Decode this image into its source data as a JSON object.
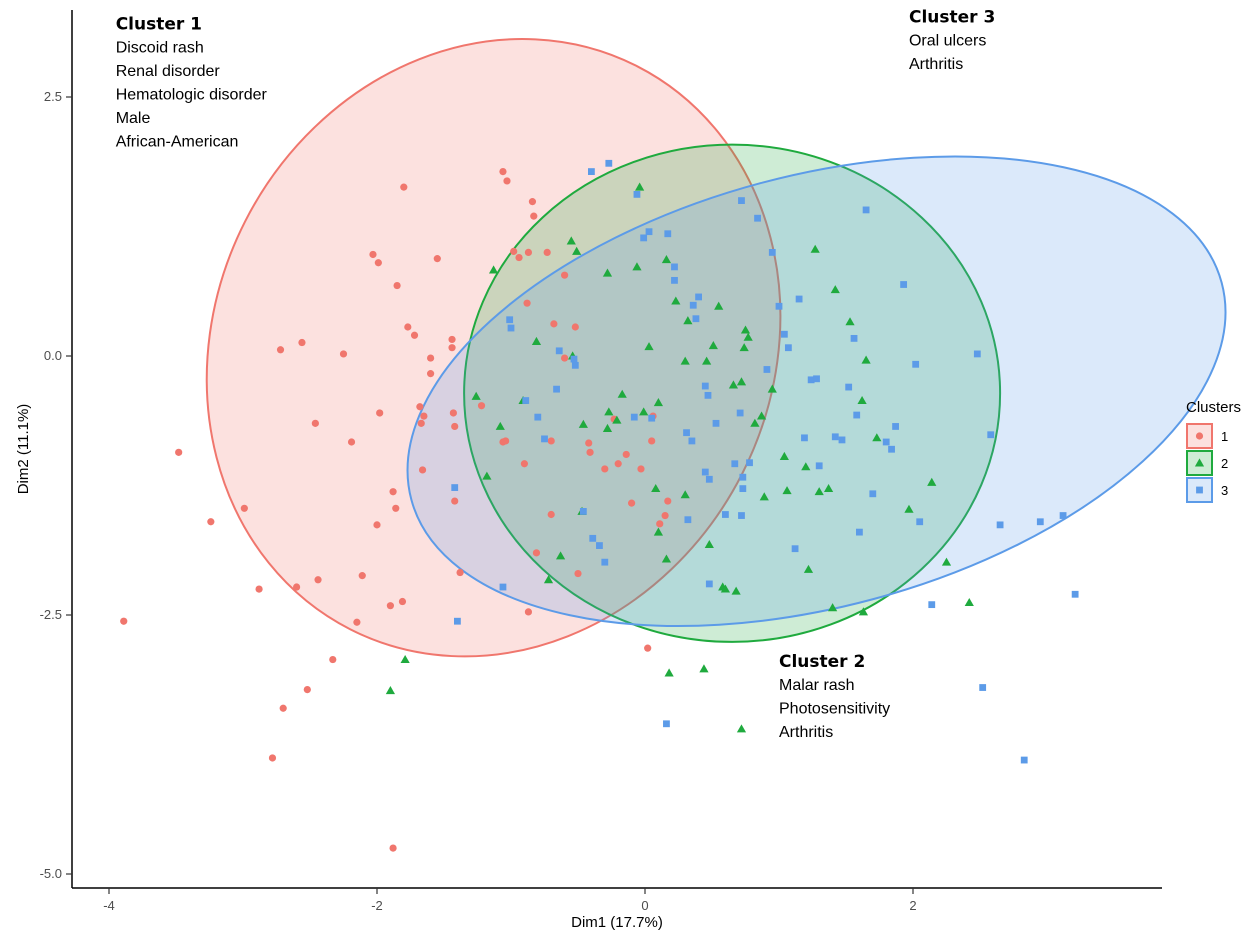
{
  "chart_data": {
    "type": "scatter",
    "xlabel": "Dim1 (17.7%)",
    "ylabel": "Dim2 (11.1%)",
    "xlim": [
      -4.3,
      4.8
    ],
    "ylim": [
      -5.1,
      3.3
    ],
    "x_ticks": [
      -4,
      -2,
      0,
      2
    ],
    "x_tick_labels": [
      "-4",
      "-2",
      "0",
      "2"
    ],
    "y_ticks": [
      2.5,
      0,
      -2.5,
      -5
    ],
    "y_tick_labels": [
      "2.5",
      "0.0",
      "-2.5",
      "-5.0"
    ],
    "grid": false,
    "legend": {
      "title": "Clusters",
      "position": "right",
      "entries": [
        {
          "label": "1",
          "color": "#F0766D",
          "shape": "circle"
        },
        {
          "label": "2",
          "color": "#1FAA3E",
          "shape": "triangle"
        },
        {
          "label": "3",
          "color": "#5C9BE8",
          "shape": "square"
        }
      ]
    },
    "ellipses": [
      {
        "cluster": "1",
        "center": [
          -1.13,
          0.08
        ],
        "semi_axes": [
          2.08,
          3.05
        ],
        "rotation_deg": 27,
        "color": "#F0766D",
        "fill": "rgba(240,118,109,0.22)"
      },
      {
        "cluster": "2",
        "center": [
          0.65,
          -0.36
        ],
        "semi_axes": [
          2.0,
          2.4
        ],
        "rotation_deg": 0,
        "color": "#1FAA3E",
        "fill": "rgba(31,170,62,0.22)"
      },
      {
        "cluster": "3",
        "center": [
          1.28,
          -0.34
        ],
        "semi_axes": [
          3.13,
          2.08
        ],
        "rotation_deg": -15,
        "color": "#5C9BE8",
        "fill": "rgba(92,155,232,0.22)"
      }
    ],
    "annotations": [
      {
        "title": "Cluster 1",
        "lines": [
          "Discoid rash",
          "Renal disorder",
          "Hematologic disorder",
          "Male",
          "African-American"
        ],
        "x": -3.95,
        "y": 3.15
      },
      {
        "title": "Cluster 3",
        "lines": [
          "Oral ulcers",
          "Arthritis"
        ],
        "x": 1.97,
        "y": 3.22
      },
      {
        "title": "Cluster 2",
        "lines": [
          "Malar rash",
          "Photosensitivity",
          "Arthritis"
        ],
        "x": 1.0,
        "y": -3.0
      }
    ],
    "series": [
      {
        "name": "1",
        "color": "#F0766D",
        "shape": "circle",
        "points": [
          [
            -3.89,
            -2.56
          ],
          [
            -3.48,
            -0.93
          ],
          [
            -3.24,
            -1.6
          ],
          [
            -2.99,
            -1.47
          ],
          [
            -2.88,
            -2.25
          ],
          [
            -2.78,
            -3.88
          ],
          [
            -2.7,
            -3.4
          ],
          [
            -2.72,
            0.06
          ],
          [
            -2.6,
            -2.23
          ],
          [
            -2.56,
            0.13
          ],
          [
            -2.52,
            -3.22
          ],
          [
            -2.46,
            -0.65
          ],
          [
            -2.44,
            -2.16
          ],
          [
            -2.33,
            -2.93
          ],
          [
            -2.25,
            0.02
          ],
          [
            -2.19,
            -0.83
          ],
          [
            -2.15,
            -2.57
          ],
          [
            -2.11,
            -2.12
          ],
          [
            -2.03,
            0.98
          ],
          [
            -1.99,
            0.9
          ],
          [
            -2.0,
            -1.63
          ],
          [
            -1.98,
            -0.55
          ],
          [
            -1.9,
            -2.41
          ],
          [
            -1.88,
            -1.31
          ],
          [
            -1.86,
            -1.47
          ],
          [
            -1.85,
            0.68
          ],
          [
            -1.8,
            1.63
          ],
          [
            -1.81,
            -2.37
          ],
          [
            -1.77,
            0.28
          ],
          [
            -1.72,
            0.2
          ],
          [
            -1.68,
            -0.49
          ],
          [
            -1.67,
            -0.65
          ],
          [
            -1.66,
            -1.1
          ],
          [
            -1.65,
            -0.58
          ],
          [
            -1.6,
            -0.02
          ],
          [
            -1.6,
            -0.17
          ],
          [
            -1.55,
            0.94
          ],
          [
            -1.44,
            0.16
          ],
          [
            -1.44,
            0.08
          ],
          [
            -1.43,
            -0.55
          ],
          [
            -1.42,
            -0.68
          ],
          [
            -1.42,
            -1.4
          ],
          [
            -1.38,
            -2.09
          ],
          [
            -1.22,
            -0.48
          ],
          [
            -1.06,
            -0.83
          ],
          [
            -1.04,
            -0.82
          ],
          [
            -1.06,
            1.78
          ],
          [
            -1.03,
            1.69
          ],
          [
            -0.98,
            1.01
          ],
          [
            -0.94,
            0.95
          ],
          [
            -0.87,
            1.0
          ],
          [
            -0.84,
            1.49
          ],
          [
            -0.83,
            1.35
          ],
          [
            -0.88,
            0.51
          ],
          [
            -0.9,
            -1.04
          ],
          [
            -0.87,
            -2.47
          ],
          [
            -0.73,
            1.0
          ],
          [
            -0.7,
            -0.82
          ],
          [
            -0.7,
            -1.53
          ],
          [
            -0.68,
            0.31
          ],
          [
            -0.6,
            -0.02
          ],
          [
            -0.6,
            0.78
          ],
          [
            -0.52,
            0.28
          ],
          [
            -0.42,
            -0.84
          ],
          [
            -0.41,
            -0.93
          ],
          [
            -0.3,
            -1.09
          ],
          [
            -0.2,
            -1.04
          ],
          [
            -0.23,
            -0.61
          ],
          [
            -0.14,
            -0.95
          ],
          [
            -0.1,
            -1.42
          ],
          [
            -0.03,
            -1.09
          ],
          [
            0.02,
            -2.82
          ],
          [
            0.05,
            -0.82
          ],
          [
            0.06,
            -0.58
          ],
          [
            0.11,
            -1.62
          ],
          [
            0.15,
            -1.54
          ],
          [
            0.17,
            -1.4
          ],
          [
            -0.81,
            -1.9
          ],
          [
            -0.5,
            -2.1
          ],
          [
            -1.88,
            -4.75
          ]
        ]
      },
      {
        "name": "2",
        "color": "#1FAA3E",
        "shape": "triangle",
        "points": [
          [
            -1.9,
            -3.23
          ],
          [
            -1.79,
            -2.93
          ],
          [
            -1.26,
            -0.39
          ],
          [
            -1.18,
            -1.16
          ],
          [
            -1.13,
            0.83
          ],
          [
            -1.08,
            -0.68
          ],
          [
            -0.91,
            -0.43
          ],
          [
            -0.81,
            0.14
          ],
          [
            -0.72,
            -2.16
          ],
          [
            -0.63,
            -1.93
          ],
          [
            -0.55,
            1.11
          ],
          [
            -0.51,
            1.01
          ],
          [
            -0.46,
            -0.66
          ],
          [
            -0.54,
            0.0
          ],
          [
            -0.47,
            -1.5
          ],
          [
            -0.28,
            0.8
          ],
          [
            -0.27,
            -0.54
          ],
          [
            -0.28,
            -0.7
          ],
          [
            -0.21,
            -0.62
          ],
          [
            -0.17,
            -0.37
          ],
          [
            -0.06,
            0.86
          ],
          [
            -0.01,
            -0.54
          ],
          [
            -0.04,
            1.63
          ],
          [
            0.03,
            0.09
          ],
          [
            0.08,
            -1.28
          ],
          [
            0.1,
            -1.7
          ],
          [
            0.1,
            -0.45
          ],
          [
            0.16,
            0.93
          ],
          [
            0.16,
            -1.96
          ],
          [
            0.18,
            -3.06
          ],
          [
            0.23,
            0.53
          ],
          [
            0.3,
            -0.05
          ],
          [
            0.3,
            -1.34
          ],
          [
            0.32,
            0.34
          ],
          [
            0.44,
            -3.02
          ],
          [
            0.48,
            -1.82
          ],
          [
            0.51,
            0.1
          ],
          [
            0.55,
            0.48
          ],
          [
            0.58,
            -2.23
          ],
          [
            0.6,
            -2.25
          ],
          [
            0.66,
            -0.28
          ],
          [
            0.68,
            -2.27
          ],
          [
            0.72,
            -0.25
          ],
          [
            0.74,
            0.08
          ],
          [
            0.72,
            -3.6
          ],
          [
            0.75,
            0.25
          ],
          [
            0.77,
            0.18
          ],
          [
            0.82,
            -0.65
          ],
          [
            0.87,
            -0.58
          ],
          [
            0.89,
            -1.36
          ],
          [
            1.04,
            -0.97
          ],
          [
            1.06,
            -1.3
          ],
          [
            1.2,
            -1.07
          ],
          [
            1.22,
            -2.06
          ],
          [
            1.27,
            1.03
          ],
          [
            1.3,
            -1.31
          ],
          [
            1.37,
            -1.28
          ],
          [
            1.4,
            -2.43
          ],
          [
            1.42,
            0.64
          ],
          [
            1.53,
            0.33
          ],
          [
            1.62,
            -0.43
          ],
          [
            1.63,
            -2.47
          ],
          [
            1.65,
            -0.04
          ],
          [
            1.73,
            -0.79
          ],
          [
            1.97,
            -1.48
          ],
          [
            2.14,
            -1.22
          ],
          [
            2.25,
            -1.99
          ],
          [
            2.42,
            -2.38
          ],
          [
            0.46,
            -0.05
          ],
          [
            0.95,
            -0.32
          ]
        ]
      },
      {
        "name": "3",
        "color": "#5C9BE8",
        "shape": "square",
        "points": [
          [
            -1.42,
            -1.27
          ],
          [
            -1.4,
            -2.56
          ],
          [
            -1.06,
            -2.23
          ],
          [
            -1.01,
            0.35
          ],
          [
            -1.0,
            0.27
          ],
          [
            -0.89,
            -0.43
          ],
          [
            -0.8,
            -0.59
          ],
          [
            -0.75,
            -0.8
          ],
          [
            -0.64,
            0.05
          ],
          [
            -0.66,
            -0.32
          ],
          [
            -0.53,
            -0.03
          ],
          [
            -0.52,
            -0.09
          ],
          [
            -0.46,
            -1.5
          ],
          [
            -0.39,
            -1.76
          ],
          [
            -0.34,
            -1.83
          ],
          [
            -0.3,
            -1.99
          ],
          [
            -0.27,
            1.86
          ],
          [
            -0.08,
            -0.59
          ],
          [
            -0.06,
            1.56
          ],
          [
            -0.01,
            1.14
          ],
          [
            0.03,
            1.2
          ],
          [
            0.05,
            -0.6
          ],
          [
            0.17,
            1.18
          ],
          [
            0.16,
            -3.55
          ],
          [
            0.22,
            0.73
          ],
          [
            0.22,
            0.86
          ],
          [
            0.31,
            -0.74
          ],
          [
            0.32,
            -1.58
          ],
          [
            0.35,
            -0.82
          ],
          [
            0.36,
            0.49
          ],
          [
            0.38,
            0.36
          ],
          [
            0.4,
            0.57
          ],
          [
            0.45,
            -0.29
          ],
          [
            0.47,
            -0.38
          ],
          [
            0.45,
            -1.12
          ],
          [
            0.48,
            -1.19
          ],
          [
            0.48,
            -2.2
          ],
          [
            0.53,
            -0.65
          ],
          [
            0.6,
            -1.53
          ],
          [
            0.67,
            -1.04
          ],
          [
            0.72,
            -1.54
          ],
          [
            0.71,
            -0.55
          ],
          [
            0.73,
            -1.17
          ],
          [
            0.73,
            -1.28
          ],
          [
            0.78,
            -1.03
          ],
          [
            0.84,
            1.33
          ],
          [
            0.91,
            -0.13
          ],
          [
            0.95,
            1.0
          ],
          [
            1.0,
            0.48
          ],
          [
            1.04,
            0.21
          ],
          [
            1.07,
            0.08
          ],
          [
            1.12,
            -1.86
          ],
          [
            1.15,
            0.55
          ],
          [
            1.19,
            -0.79
          ],
          [
            1.24,
            -0.23
          ],
          [
            1.28,
            -0.22
          ],
          [
            1.3,
            -1.06
          ],
          [
            1.42,
            -0.78
          ],
          [
            1.47,
            -0.81
          ],
          [
            1.52,
            -0.3
          ],
          [
            1.56,
            0.17
          ],
          [
            1.58,
            -0.57
          ],
          [
            1.6,
            -1.7
          ],
          [
            1.65,
            1.41
          ],
          [
            1.7,
            -1.33
          ],
          [
            1.8,
            -0.83
          ],
          [
            1.84,
            -0.9
          ],
          [
            1.87,
            -0.68
          ],
          [
            1.93,
            0.69
          ],
          [
            2.02,
            -0.08
          ],
          [
            2.05,
            -1.6
          ],
          [
            2.14,
            -2.4
          ],
          [
            2.48,
            0.02
          ],
          [
            2.52,
            -3.2
          ],
          [
            2.58,
            -0.76
          ],
          [
            2.65,
            -1.63
          ],
          [
            2.83,
            -3.9
          ],
          [
            2.95,
            -1.6
          ],
          [
            3.12,
            -1.54
          ],
          [
            3.21,
            -2.3
          ],
          [
            -0.4,
            1.78
          ],
          [
            0.72,
            1.5
          ]
        ]
      }
    ]
  }
}
